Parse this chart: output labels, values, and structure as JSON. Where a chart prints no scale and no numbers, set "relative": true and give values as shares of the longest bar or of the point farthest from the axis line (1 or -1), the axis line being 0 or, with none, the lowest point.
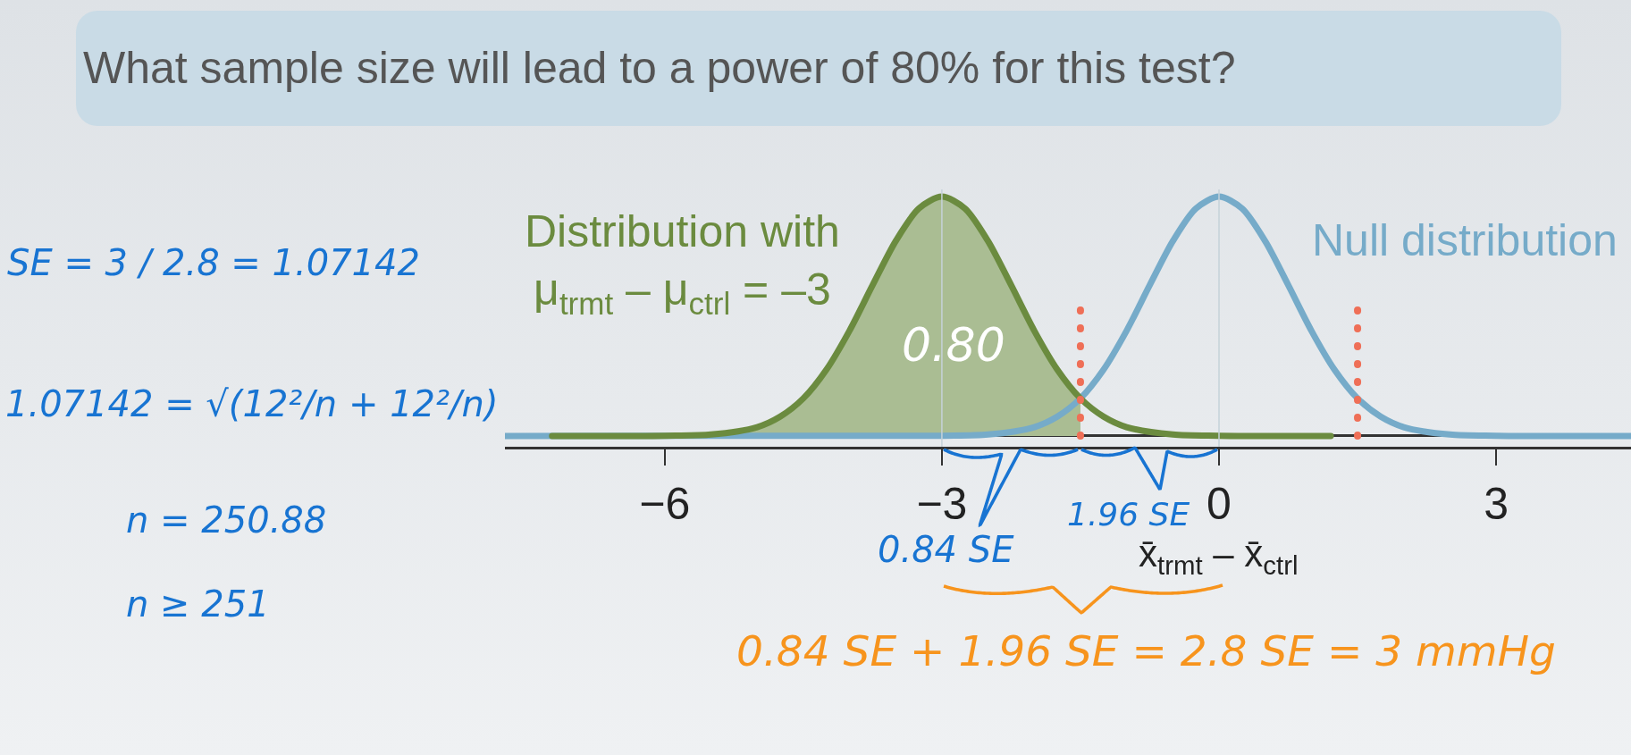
{
  "chart_data": {
    "type": "line",
    "relative": true,
    "title": "What sample size will lead to a power of 80% for this test?",
    "xlabel": "x̄$_{trmt}$ – x̄$_{ctrl}$",
    "xlim": [
      -7.73,
      4.46
    ],
    "xticks": [
      {
        "value": -6,
        "label": "−6"
      },
      {
        "value": -3,
        "label": "−3"
      },
      0,
      3
    ],
    "grid": false,
    "legend": false,
    "marker": "none",
    "line_style": "solid",
    "series": [
      {
        "color": "#aabd93",
        "type": "area",
        "x": [
          -7.22,
          -6,
          -5.5,
          -5,
          -4.75,
          -4.5,
          -4.25,
          -4,
          -3.75,
          -3.5,
          -3.25,
          -3,
          -2.75,
          -2.5,
          -2.25,
          -2,
          -1.75,
          -1.5
        ],
        "values": [
          0,
          0.001,
          0.006,
          0.037,
          0.081,
          0.157,
          0.277,
          0.44,
          0.63,
          0.814,
          0.95,
          1,
          0.95,
          0.814,
          0.63,
          0.44,
          0.277,
          0.157
        ]
      },
      {
        "name": "Null distribution",
        "color": "#76abc9",
        "x": [
          -7.73,
          -3,
          -2.5,
          -2,
          -1.75,
          -1.5,
          -1.25,
          -1,
          -0.75,
          -0.5,
          -0.25,
          0,
          0.25,
          0.5,
          0.75,
          1,
          1.25,
          1.5,
          1.75,
          2,
          2.5,
          3,
          4.46
        ],
        "values": [
          0,
          0.001,
          0.006,
          0.037,
          0.081,
          0.157,
          0.277,
          0.44,
          0.63,
          0.814,
          0.95,
          1,
          0.95,
          0.814,
          0.63,
          0.44,
          0.277,
          0.157,
          0.081,
          0.037,
          0.006,
          0.001,
          0
        ]
      },
      {
        "name": "Distribution with\nμ$_{trmt}$ – μ$_{ctrl}$ = –3",
        "color": "#6b8b3f",
        "x": [
          -7.22,
          -6,
          -5.5,
          -5,
          -4.75,
          -4.5,
          -4.25,
          -4,
          -3.75,
          -3.5,
          -3.25,
          -3,
          -2.75,
          -2.5,
          -2.25,
          -2,
          -1.75,
          -1.5,
          -1.25,
          -1,
          -0.5,
          0,
          1.21
        ],
        "values": [
          0,
          0.001,
          0.006,
          0.037,
          0.081,
          0.157,
          0.277,
          0.44,
          0.63,
          0.814,
          0.95,
          1,
          0.95,
          0.814,
          0.63,
          0.44,
          0.277,
          0.157,
          0.081,
          0.037,
          0.006,
          0.001,
          0
        ]
      },
      {
        "color": "#ef6f57",
        "line_style": "dotted",
        "x": [
          -1.5,
          -1.5
        ],
        "values": [
          0,
          0.53
        ]
      },
      {
        "color": "#ef6f57",
        "line_style": "dotted",
        "x": [
          1.5,
          1.5
        ],
        "values": [
          0,
          0.53
        ]
      }
    ],
    "ref_lines": [
      {
        "axis": "x",
        "value": -3,
        "color": "#c5d2d9"
      },
      {
        "axis": "x",
        "value": 0,
        "color": "#c5d2d9"
      }
    ],
    "annotations": [
      "SE = 3 / 2.8 = 1.07142",
      "1.07142 = √(12²/n + 12²/n)",
      "n = 250.88",
      "n ≥ 251",
      "0.80",
      "0.84 SE",
      "1.96 SE",
      "0.84 SE + 1.96 SE = 2.8 SE = 3 mmHg"
    ]
  }
}
